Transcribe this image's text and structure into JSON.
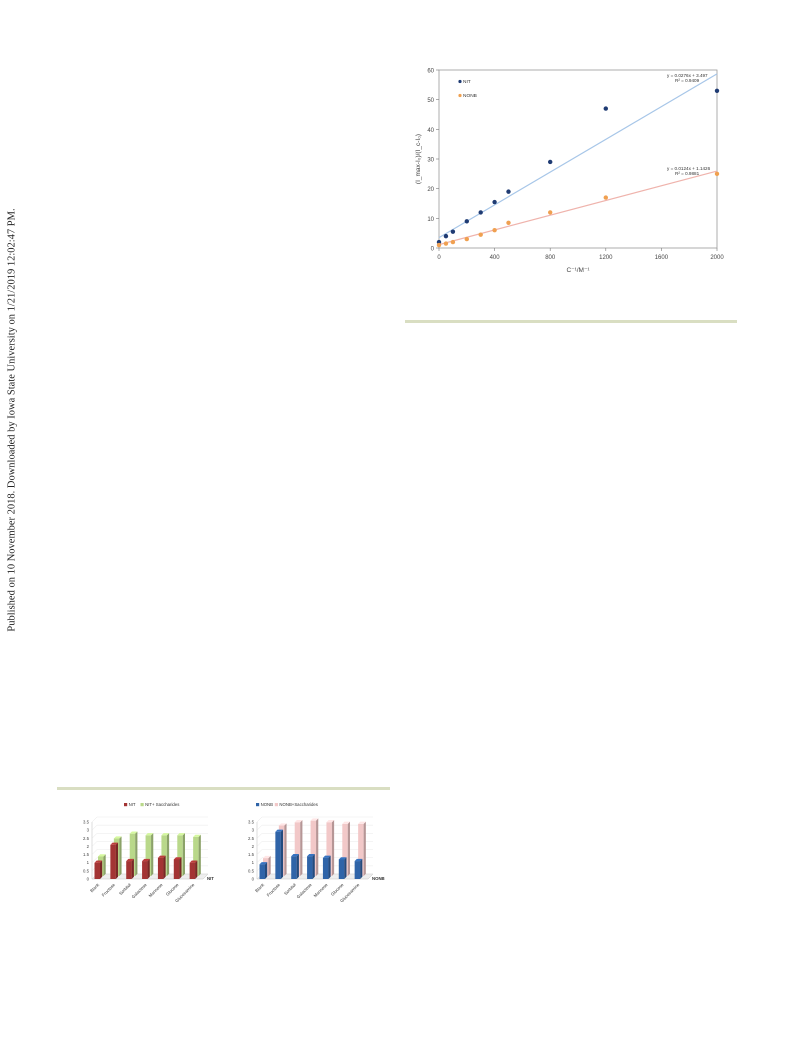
{
  "side_note": "Published on 10 November 2018. Downloaded by Iowa State University on 1/21/2019 12:02:47 PM.",
  "colors": {
    "nit": "#1f3b73",
    "nonb": "#f0a050",
    "nit_line": "#a7c6e8",
    "nonb_line": "#efb3ac",
    "nit_bar": "#a33434",
    "nit_sac_bar": "#b9d88a",
    "nonb_bar": "#2f64a8",
    "nonb_sac_bar": "#f2c8c8"
  },
  "chart_data": [
    {
      "type": "scatter",
      "title": "",
      "xlabel": "C⁻¹/M⁻¹",
      "ylabel": "(I_max-I₀)/(I_c-I₀)",
      "xlim": [
        0,
        2000
      ],
      "ylim": [
        0,
        60
      ],
      "xticks": [
        "0",
        "400",
        "800",
        "1200",
        "1600",
        "2000"
      ],
      "yticks": [
        "0",
        "10",
        "20",
        "30",
        "40",
        "50",
        "60"
      ],
      "legend": [
        "NIT",
        "NONB"
      ],
      "legend_position": "top-left",
      "series": [
        {
          "name": "NIT",
          "points": [
            [
              0,
              2
            ],
            [
              50,
              4
            ],
            [
              100,
              5.5
            ],
            [
              200,
              9
            ],
            [
              300,
              12
            ],
            [
              400,
              15.5
            ],
            [
              500,
              19
            ],
            [
              800,
              29
            ],
            [
              1200,
              47
            ],
            [
              2000,
              53
            ]
          ],
          "fit": {
            "slope": 0.0276,
            "intercept": 3.497,
            "equation": "y = 0.0276x + 3.497",
            "r2": "R² = 0.9409"
          }
        },
        {
          "name": "NONB",
          "points": [
            [
              0,
              1
            ],
            [
              50,
              1.5
            ],
            [
              100,
              2
            ],
            [
              200,
              3
            ],
            [
              300,
              4.5
            ],
            [
              400,
              6
            ],
            [
              500,
              8.5
            ],
            [
              800,
              12
            ],
            [
              1200,
              17
            ],
            [
              2000,
              25
            ]
          ],
          "fit": {
            "slope": 0.0124,
            "intercept": 1.1426,
            "equation": "y = 0.0124x + 1.1426",
            "r2": "R² = 0.9881"
          }
        }
      ]
    },
    {
      "type": "bar",
      "title": "",
      "categories": [
        "Blank",
        "Fructose",
        "Sorbitol",
        "Galactose",
        "Mannose",
        "Glucose",
        "Glucosamine"
      ],
      "axis_label": "NIT",
      "ylim": [
        0,
        3.5
      ],
      "yticks": [
        "0",
        "0.5",
        "1",
        "1.5",
        "2",
        "2.5",
        "3",
        "3.5"
      ],
      "legend_position": "top",
      "series": [
        {
          "name": "NIT",
          "values": [
            1.0,
            2.1,
            1.1,
            1.1,
            1.3,
            1.2,
            1.0
          ]
        },
        {
          "name": "NIT+ Saccharides",
          "values": [
            1.2,
            2.3,
            2.6,
            2.5,
            2.5,
            2.5,
            2.4
          ]
        }
      ]
    },
    {
      "type": "bar",
      "title": "",
      "categories": [
        "Blank",
        "Fructose",
        "Sorbitol",
        "Galactose",
        "Mannose",
        "Glucose",
        "Glucosamine"
      ],
      "axis_label": "NONB",
      "ylim": [
        0,
        3.5
      ],
      "yticks": [
        "0",
        "0.5",
        "1",
        "1.5",
        "2",
        "2.5",
        "3",
        "3.5"
      ],
      "legend_position": "top",
      "series": [
        {
          "name": "NONB",
          "values": [
            0.9,
            2.9,
            1.4,
            1.4,
            1.3,
            1.2,
            1.1
          ]
        },
        {
          "name": "NONB+Saccharides",
          "values": [
            1.1,
            3.1,
            3.3,
            3.4,
            3.3,
            3.2,
            3.2
          ]
        }
      ]
    }
  ]
}
